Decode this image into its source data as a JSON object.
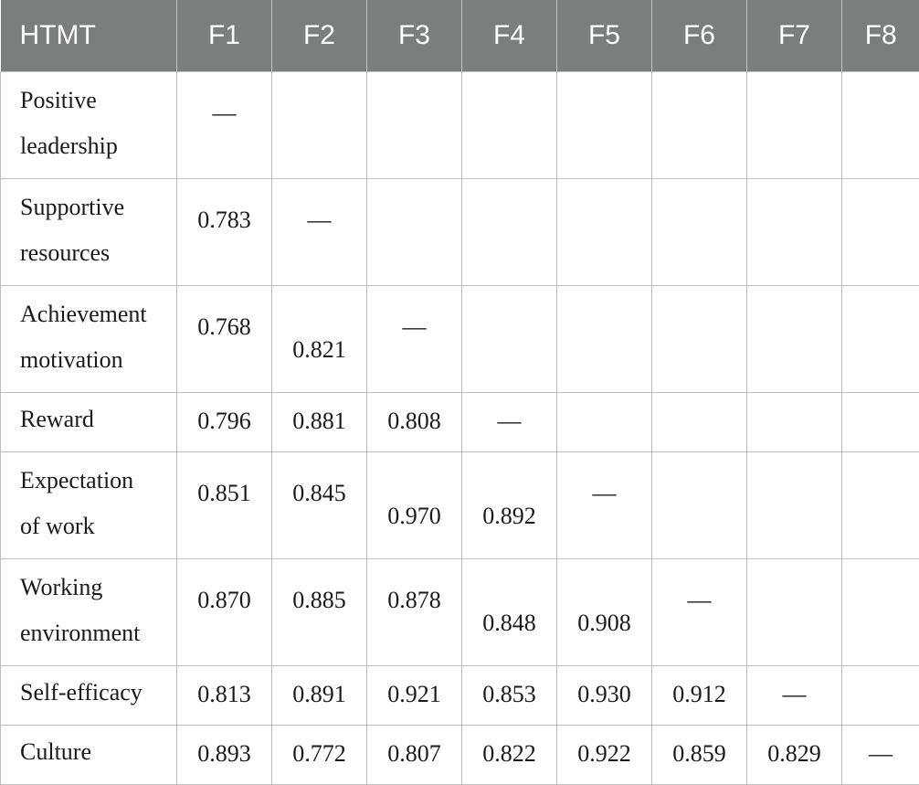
{
  "table": {
    "corner": "HTMT",
    "columns": [
      "F1",
      "F2",
      "F3",
      "F4",
      "F5",
      "F6",
      "F7",
      "F8"
    ],
    "rows": [
      {
        "label_line1": "Positive",
        "label_line2": "leadership",
        "cells": [
          "—",
          "",
          "",
          "",
          "",
          "",
          "",
          ""
        ]
      },
      {
        "label_line1": "Supportive",
        "label_line2": "resources",
        "cells": [
          "0.783",
          "—",
          "",
          "",
          "",
          "",
          "",
          ""
        ]
      },
      {
        "label_line1": "Achievement",
        "label_line2": "motivation",
        "cells": [
          "0.768",
          "0.821",
          "—",
          "",
          "",
          "",
          "",
          ""
        ]
      },
      {
        "label": "Reward",
        "cells": [
          "0.796",
          "0.881",
          "0.808",
          "—",
          "",
          "",
          "",
          ""
        ]
      },
      {
        "label_line1": "Expectation",
        "label_line2": "of work",
        "cells": [
          "0.851",
          "0.845",
          "0.970",
          "0.892",
          "—",
          "",
          "",
          ""
        ]
      },
      {
        "label_line1": "Working",
        "label_line2": "environment",
        "cells": [
          "0.870",
          "0.885",
          "0.878",
          "0.848",
          "0.908",
          "—",
          "",
          ""
        ]
      },
      {
        "label": "Self-efficacy",
        "cells": [
          "0.813",
          "0.891",
          "0.921",
          "0.853",
          "0.930",
          "0.912",
          "—",
          ""
        ]
      },
      {
        "label": "Culture",
        "cells": [
          "0.893",
          "0.772",
          "0.807",
          "0.822",
          "0.922",
          "0.859",
          "0.829",
          "—"
        ]
      }
    ]
  }
}
